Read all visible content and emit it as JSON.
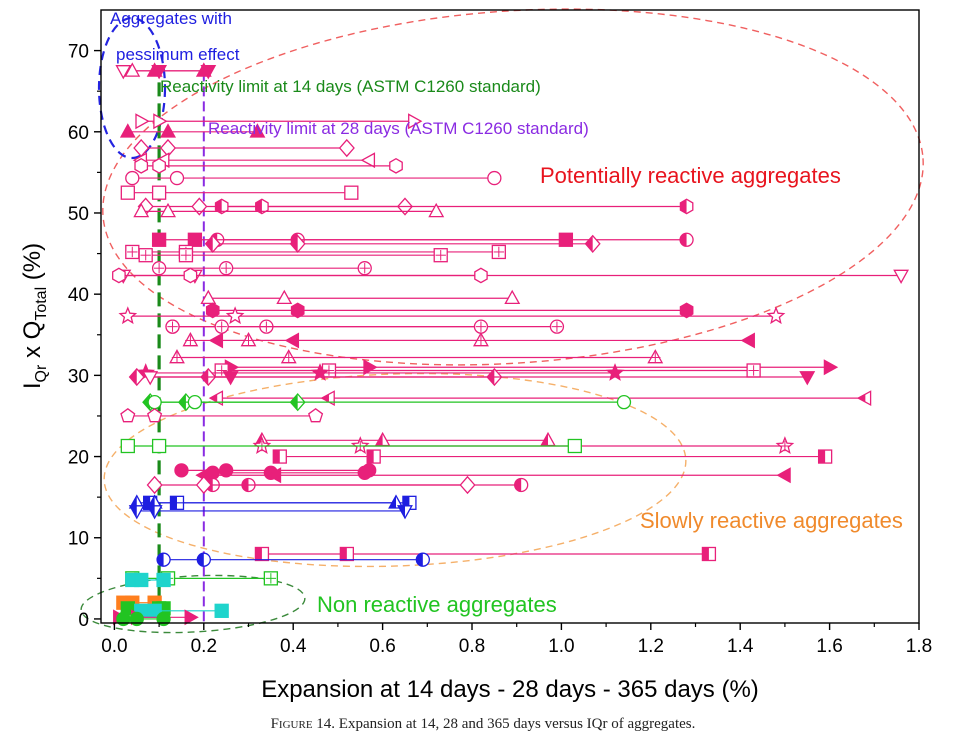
{
  "caption": {
    "figure_label": "Figure 14.",
    "text": "Expansion at 14, 28 and 365 days versus IQr of aggregates."
  },
  "chart_data": {
    "type": "scatter",
    "xlabel": "Expansion at 14 days - 28 days - 365 days (%)",
    "ylabel": {
      "main": "I",
      "sub1": "Qr",
      "mid": " x Q",
      "sub2": "Total",
      "tail": " (%)"
    },
    "xlim": [
      -0.03,
      1.8
    ],
    "ylim": [
      -0.5,
      75
    ],
    "xticks": [
      "0.0",
      "0.2",
      "0.4",
      "0.6",
      "0.8",
      "1.0",
      "1.2",
      "1.4",
      "1.6",
      "1.8"
    ],
    "xtick_values": [
      0,
      0.2,
      0.4,
      0.6,
      0.8,
      1.0,
      1.2,
      1.4,
      1.6,
      1.8
    ],
    "yticks": [
      "0",
      "10",
      "20",
      "30",
      "40",
      "50",
      "60",
      "70"
    ],
    "ytick_values": [
      0,
      10,
      20,
      30,
      40,
      50,
      60,
      70
    ],
    "grid": false,
    "reference_lines": [
      {
        "label": "Reactivity limit at 14 days (ASTM C1260 standard)",
        "x": 0.1,
        "color": "#1a8a1a"
      },
      {
        "label": "Reactivity limit at 28 days (ASTM C1260 standard)",
        "x": 0.2,
        "color": "#8a2be2"
      }
    ],
    "region_labels": [
      {
        "label": "Potentially reactive aggregates",
        "color": "#e8141e"
      },
      {
        "label": "Slowly reactive aggregates",
        "color": "#f08a2c"
      },
      {
        "label": "Non reactive aggregates",
        "color": "#22c422"
      },
      {
        "label1": "Aggregates with",
        "label2": "pessimum effect",
        "color": "#1e1ee0"
      }
    ],
    "colors": {
      "pink": "#e8207a",
      "green": "#22c422",
      "blue": "#1e1ee0",
      "cyan": "#1fd4cc",
      "orange": "#ff7f1e"
    },
    "series": [
      {
        "y": 67.5,
        "x": [
          0.02,
          0.1,
          0.21
        ],
        "marker": "triangle-down",
        "fill": "mixed",
        "color": "pink"
      },
      {
        "y": 67.5,
        "x": [
          0.04,
          0.09,
          0.2
        ],
        "marker": "triangle-up",
        "fill": "mixed",
        "color": "pink"
      },
      {
        "y": 60,
        "x": [
          0.03,
          0.12,
          0.32
        ],
        "marker": "triangle-up",
        "fill": "full",
        "color": "pink"
      },
      {
        "y": 61.3,
        "x": [
          0.06,
          0.1,
          0.67
        ],
        "marker": "triangle-right",
        "fill": "open",
        "color": "pink"
      },
      {
        "y": 58,
        "x": [
          0.06,
          0.12,
          0.52
        ],
        "marker": "diamond",
        "fill": "open",
        "color": "pink"
      },
      {
        "y": 56.5,
        "x": [
          0.06,
          0.11,
          0.57
        ],
        "marker": "triangle-left",
        "fill": "open",
        "color": "pink"
      },
      {
        "y": 55.8,
        "x": [
          0.06,
          0.1,
          0.63
        ],
        "marker": "hexagon",
        "fill": "open",
        "color": "pink"
      },
      {
        "y": 54.3,
        "x": [
          0.04,
          0.14,
          0.85
        ],
        "marker": "circle",
        "fill": "open",
        "color": "pink"
      },
      {
        "y": 52.5,
        "x": [
          0.03,
          0.1,
          0.53
        ],
        "marker": "square",
        "fill": "open",
        "color": "pink"
      },
      {
        "y": 50.8,
        "x": [
          0.07,
          0.19,
          0.65
        ],
        "marker": "diamond",
        "fill": "open",
        "color": "pink"
      },
      {
        "y": 50.8,
        "x": [
          0.24,
          0.33,
          1.28
        ],
        "marker": "hexagon",
        "fill": "half",
        "color": "pink"
      },
      {
        "y": 50.2,
        "x": [
          0.06,
          0.12,
          0.72
        ],
        "marker": "triangle-up",
        "fill": "open",
        "color": "pink"
      },
      {
        "y": 46.7,
        "x": [
          0.23,
          0.41,
          1.28
        ],
        "marker": "circle",
        "fill": "half",
        "color": "pink"
      },
      {
        "y": 46.7,
        "x": [
          0.1,
          0.18,
          1.01
        ],
        "marker": "square",
        "fill": "full",
        "color": "pink"
      },
      {
        "y": 46.2,
        "x": [
          0.22,
          0.41,
          1.07
        ],
        "marker": "diamond",
        "fill": "half",
        "color": "pink"
      },
      {
        "y": 45.2,
        "x": [
          0.04,
          0.16,
          0.86
        ],
        "marker": "square",
        "fill": "cross",
        "color": "pink"
      },
      {
        "y": 44.8,
        "x": [
          0.07,
          0.16,
          0.73
        ],
        "marker": "square",
        "fill": "cross",
        "color": "pink"
      },
      {
        "y": 43.2,
        "x": [
          0.1,
          0.25,
          0.56
        ],
        "marker": "circle",
        "fill": "cross",
        "color": "pink"
      },
      {
        "y": 42.3,
        "x": [
          0.02,
          0.18,
          1.76
        ],
        "marker": "triangle-down",
        "fill": "open",
        "color": "pink"
      },
      {
        "y": 42.3,
        "x": [
          0.01,
          0.17,
          0.82
        ],
        "marker": "hexagon",
        "fill": "open",
        "color": "pink"
      },
      {
        "y": 39.5,
        "x": [
          0.21,
          0.38,
          0.89
        ],
        "marker": "triangle-up",
        "fill": "open",
        "color": "pink"
      },
      {
        "y": 38,
        "x": [
          0.22,
          0.41,
          1.28
        ],
        "marker": "hexagon",
        "fill": "full",
        "color": "pink"
      },
      {
        "y": 37.3,
        "x": [
          0.03,
          0.27,
          1.48
        ],
        "marker": "star",
        "fill": "open",
        "color": "pink"
      },
      {
        "y": 36,
        "x": [
          0.13,
          0.34,
          0.99
        ],
        "marker": "circle",
        "fill": "cross",
        "color": "pink"
      },
      {
        "y": 36,
        "x": [
          0.13,
          0.24,
          0.82
        ],
        "marker": "circle",
        "fill": "cross",
        "color": "pink"
      },
      {
        "y": 34.3,
        "x": [
          0.23,
          0.4,
          1.42
        ],
        "marker": "triangle-left",
        "fill": "full",
        "color": "pink"
      },
      {
        "y": 34.3,
        "x": [
          0.17,
          0.3,
          0.82
        ],
        "marker": "triangle-up",
        "fill": "cross",
        "color": "pink"
      },
      {
        "y": 32.2,
        "x": [
          0.14,
          0.39,
          1.21
        ],
        "marker": "triangle-up",
        "fill": "cross",
        "color": "pink"
      },
      {
        "y": 31,
        "x": [
          0.26,
          0.57,
          1.6
        ],
        "marker": "triangle-right",
        "fill": "full",
        "color": "pink"
      },
      {
        "y": 30.6,
        "x": [
          0.24,
          0.48,
          1.43
        ],
        "marker": "square",
        "fill": "cross",
        "color": "pink"
      },
      {
        "y": 30.3,
        "x": [
          0.07,
          0.46,
          1.12
        ],
        "marker": "star",
        "fill": "full",
        "color": "pink"
      },
      {
        "y": 29.8,
        "x": [
          0.05,
          0.21,
          0.85
        ],
        "marker": "diamond",
        "fill": "half",
        "color": "pink"
      },
      {
        "y": 29.8,
        "x": [
          0.08,
          0.26,
          1.55
        ],
        "marker": "triangle-down",
        "fill": "mixed",
        "color": "pink"
      },
      {
        "y": 27.2,
        "x": [
          0.23,
          0.48,
          1.68
        ],
        "marker": "triangle-left",
        "fill": "half",
        "color": "pink"
      },
      {
        "y": 26.7,
        "x": [
          0.08,
          0.16,
          0.41
        ],
        "marker": "diamond",
        "fill": "half",
        "color": "green"
      },
      {
        "y": 26.7,
        "x": [
          0.09,
          0.18,
          1.14
        ],
        "marker": "circle",
        "fill": "open",
        "color": "green"
      },
      {
        "y": 25,
        "x": [
          0.03,
          0.09,
          0.45
        ],
        "marker": "pentagon",
        "fill": "open",
        "color": "pink"
      },
      {
        "y": 22,
        "x": [
          0.33,
          0.6,
          0.97
        ],
        "marker": "triangle-up",
        "fill": "half",
        "color": "pink"
      },
      {
        "y": 21.3,
        "x": [
          0.33,
          0.55,
          1.5
        ],
        "marker": "star",
        "fill": "cross",
        "color": "pink"
      },
      {
        "y": 21.3,
        "x": [
          0.03,
          0.1,
          1.03
        ],
        "marker": "square",
        "fill": "open",
        "color": "green"
      },
      {
        "y": 20,
        "x": [
          0.37,
          0.58,
          1.59
        ],
        "marker": "square",
        "fill": "half",
        "color": "pink"
      },
      {
        "y": 18.3,
        "x": [
          0.15,
          0.25,
          0.57
        ],
        "marker": "circle",
        "fill": "full",
        "color": "pink"
      },
      {
        "y": 18,
        "x": [
          0.22,
          0.35,
          0.56
        ],
        "marker": "circle",
        "fill": "full",
        "color": "pink"
      },
      {
        "y": 17.7,
        "x": [
          0.2,
          0.36,
          1.5
        ],
        "marker": "triangle-left",
        "fill": "full",
        "color": "pink"
      },
      {
        "y": 16.5,
        "x": [
          0.22,
          0.3,
          0.91
        ],
        "marker": "circle",
        "fill": "half",
        "color": "pink"
      },
      {
        "y": 16.5,
        "x": [
          0.09,
          0.2,
          0.79
        ],
        "marker": "diamond",
        "fill": "open",
        "color": "pink"
      },
      {
        "y": 14.3,
        "x": [
          0.08,
          0.14,
          0.66
        ],
        "marker": "square",
        "fill": "half",
        "color": "blue"
      },
      {
        "y": 14.3,
        "x": [
          0.05,
          0.09,
          0.63
        ],
        "marker": "triangle-up",
        "fill": "half",
        "color": "blue"
      },
      {
        "y": 13.3,
        "x": [
          0.05,
          0.09,
          0.65
        ],
        "marker": "triangle-down",
        "fill": "half",
        "color": "blue"
      },
      {
        "y": 8,
        "x": [
          0.33,
          0.52,
          1.33
        ],
        "marker": "square",
        "fill": "half",
        "color": "pink"
      },
      {
        "y": 7.3,
        "x": [
          0.11,
          0.2,
          0.69
        ],
        "marker": "circle",
        "fill": "half",
        "color": "blue"
      },
      {
        "y": 5,
        "x": [
          0.04,
          0.12,
          0.35
        ],
        "marker": "square",
        "fill": "cross",
        "color": "green"
      },
      {
        "y": 4.8,
        "x": [
          0.04,
          0.06,
          0.11
        ],
        "marker": "square",
        "fill": "full",
        "color": "cyan"
      },
      {
        "y": 2,
        "x": [
          0.02,
          0.04,
          0.09
        ],
        "marker": "square",
        "fill": "full",
        "color": "orange"
      },
      {
        "y": 1.3,
        "x": [
          0.03,
          0.1,
          0.11
        ],
        "marker": "square",
        "fill": "full",
        "color": "green"
      },
      {
        "y": 1,
        "x": [
          0.06,
          0.09,
          0.24
        ],
        "marker": "square",
        "fill": "full",
        "color": "cyan"
      },
      {
        "y": 0.2,
        "x": [
          0.01,
          0.05,
          0.17
        ],
        "marker": "triangle-right",
        "fill": "full",
        "color": "pink"
      },
      {
        "y": 0,
        "x": [
          0.02,
          0.05,
          0.11
        ],
        "marker": "circle",
        "fill": "full",
        "color": "green"
      }
    ]
  }
}
